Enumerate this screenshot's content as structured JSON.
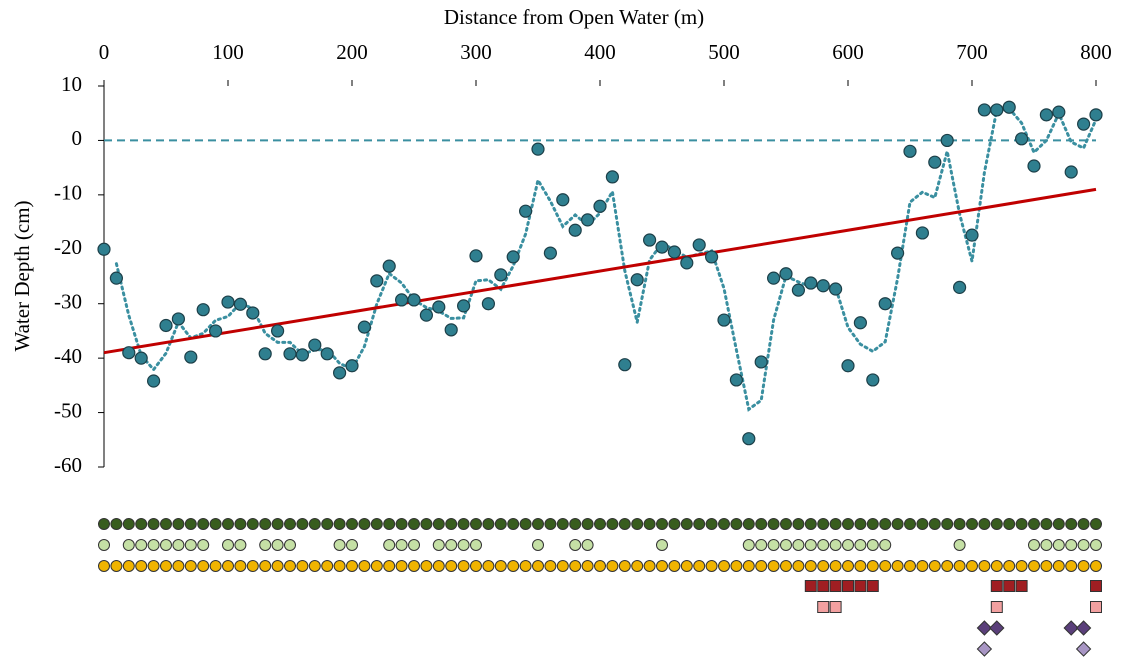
{
  "chart_data": {
    "type": "scatter",
    "x_label": "Distance from Open Water (m)",
    "y_label": "Water Depth (cm)",
    "xlim": [
      0,
      800
    ],
    "xticks": [
      0,
      100,
      200,
      300,
      400,
      500,
      600,
      700,
      800
    ],
    "ylim": [
      -60,
      10
    ],
    "yticks": [
      10,
      0,
      -10,
      -20,
      -30,
      -40,
      -50,
      -60
    ],
    "color": "#2f7f8f",
    "x": [
      0,
      10,
      20,
      30,
      40,
      50,
      60,
      70,
      80,
      90,
      100,
      110,
      120,
      130,
      140,
      150,
      160,
      170,
      180,
      190,
      200,
      210,
      220,
      230,
      240,
      250,
      260,
      270,
      280,
      290,
      300,
      310,
      320,
      330,
      340,
      350,
      360,
      370,
      380,
      390,
      400,
      410,
      420,
      430,
      440,
      450,
      460,
      470,
      480,
      490,
      500,
      510,
      520,
      530,
      540,
      550,
      560,
      570,
      580,
      590,
      600,
      610,
      620,
      630,
      640,
      650,
      660,
      670,
      680,
      690,
      700,
      710,
      720,
      730,
      740,
      750,
      760,
      770,
      780,
      790,
      800
    ],
    "values": [
      -20,
      -25.3,
      -39,
      -40,
      -44.2,
      -34,
      -32.8,
      -39.8,
      -31.1,
      -35,
      -29.7,
      -30.1,
      -31.7,
      -39.2,
      -35,
      -39.2,
      -39.4,
      -37.6,
      -39.2,
      -42.7,
      -41.4,
      -34.3,
      -25.8,
      -23.1,
      -29.3,
      -29.3,
      -32.1,
      -30.6,
      -34.8,
      -30.4,
      -21.2,
      -30,
      -24.7,
      -21.4,
      -13,
      -1.6,
      -20.7,
      -10.9,
      -16.5,
      -14.6,
      -12.1,
      -6.7,
      -41.2,
      -25.6,
      -18.3,
      -19.6,
      -20.5,
      -22.5,
      -19.2,
      -21.4,
      -33,
      -44,
      -54.8,
      -40.7,
      -25.3,
      -24.5,
      -27.5,
      -26.2,
      -26.7,
      -27.3,
      -41.4,
      -33.5,
      -44,
      -30,
      -20.7,
      -2,
      -17,
      -4,
      0,
      -27,
      -17.4,
      5.6,
      5.6,
      6.1,
      0.3,
      -4.7,
      4.7,
      5.2,
      -5.8,
      3,
      4.7
    ],
    "trend_line": {
      "x": [
        0,
        800
      ],
      "values": [
        -39,
        -9
      ],
      "color": "#c00000"
    },
    "moving_average": {
      "period": 2,
      "color": "#3a8fa0"
    },
    "reference_line": {
      "value": 0,
      "color": "#3a8fa0"
    },
    "presence_rows": [
      {
        "marker": "circle",
        "color": "#385d1e",
        "x": [
          0,
          10,
          20,
          30,
          40,
          50,
          60,
          70,
          80,
          90,
          100,
          110,
          120,
          130,
          140,
          150,
          160,
          170,
          180,
          190,
          200,
          210,
          220,
          230,
          240,
          250,
          260,
          270,
          280,
          290,
          300,
          310,
          320,
          330,
          340,
          350,
          360,
          370,
          380,
          390,
          400,
          410,
          420,
          430,
          440,
          450,
          460,
          470,
          480,
          490,
          500,
          510,
          520,
          530,
          540,
          550,
          560,
          570,
          580,
          590,
          600,
          610,
          620,
          630,
          640,
          650,
          660,
          670,
          680,
          690,
          700,
          710,
          720,
          730,
          740,
          750,
          760,
          770,
          780,
          790,
          800
        ]
      },
      {
        "marker": "circle",
        "color": "#c5e0a5",
        "x": [
          0,
          20,
          30,
          40,
          50,
          60,
          70,
          80,
          100,
          110,
          130,
          140,
          150,
          190,
          200,
          230,
          240,
          250,
          270,
          280,
          290,
          300,
          350,
          380,
          390,
          450,
          520,
          530,
          540,
          550,
          560,
          570,
          580,
          590,
          600,
          610,
          620,
          630,
          690,
          750,
          760,
          770,
          780,
          790,
          800
        ]
      },
      {
        "marker": "circle",
        "color": "#f0b400",
        "x": [
          0,
          10,
          20,
          30,
          40,
          50,
          60,
          70,
          80,
          90,
          100,
          110,
          120,
          130,
          140,
          150,
          160,
          170,
          180,
          190,
          200,
          210,
          220,
          230,
          240,
          250,
          260,
          270,
          280,
          290,
          300,
          310,
          320,
          330,
          340,
          350,
          360,
          370,
          380,
          390,
          400,
          410,
          420,
          430,
          440,
          450,
          460,
          470,
          480,
          490,
          500,
          510,
          520,
          530,
          540,
          550,
          560,
          570,
          580,
          590,
          600,
          610,
          620,
          630,
          640,
          650,
          660,
          670,
          680,
          690,
          700,
          710,
          720,
          730,
          740,
          750,
          760,
          770,
          780,
          790,
          800
        ]
      },
      {
        "marker": "square",
        "color": "#a01e22",
        "x": [
          570,
          580,
          590,
          600,
          610,
          620,
          720,
          730,
          740,
          800
        ]
      },
      {
        "marker": "square",
        "color": "#f2a0a0",
        "x": [
          580,
          590,
          720,
          800
        ]
      },
      {
        "marker": "diamond",
        "color": "#5a3f7a",
        "x": [
          710,
          720,
          780,
          790
        ]
      },
      {
        "marker": "diamond",
        "color": "#a896c4",
        "x": [
          710,
          790
        ]
      }
    ]
  }
}
